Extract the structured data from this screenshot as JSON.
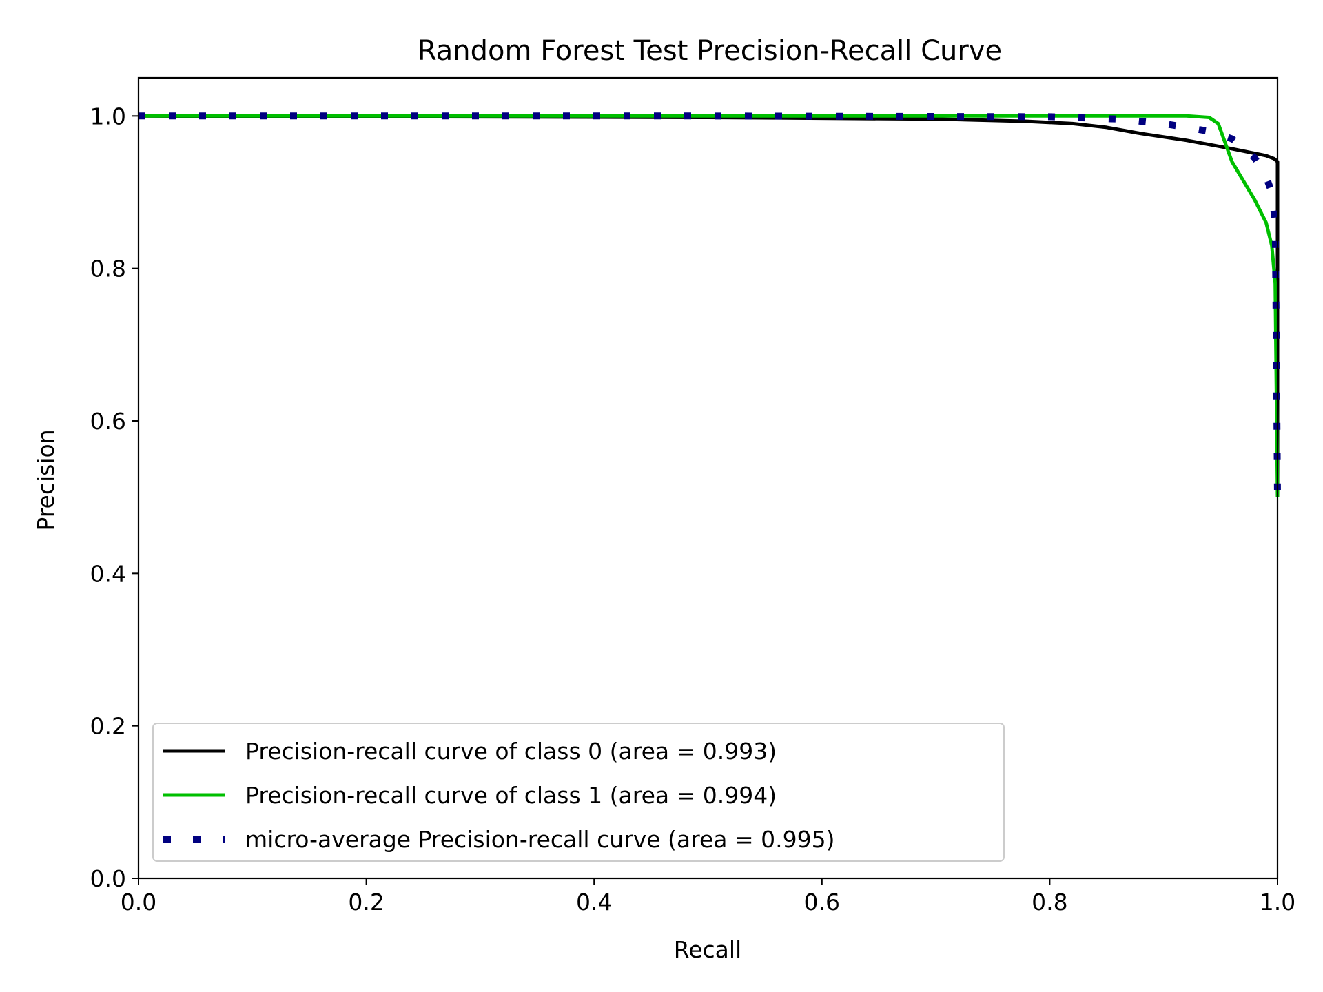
{
  "chart_data": {
    "type": "line",
    "title": "Random Forest Test Precision-Recall Curve",
    "xlabel": "Recall",
    "ylabel": "Precision",
    "xlim": [
      0.0,
      1.0
    ],
    "ylim": [
      0.0,
      1.05
    ],
    "xticks": [
      "0.0",
      "0.2",
      "0.4",
      "0.6",
      "0.8",
      "1.0"
    ],
    "yticks": [
      "0.0",
      "0.2",
      "0.4",
      "0.6",
      "0.8",
      "1.0"
    ],
    "grid": false,
    "legend_position": "lower-left",
    "series": [
      {
        "name": "Precision-recall curve of class 0 (area = 0.993)",
        "color": "#000000",
        "style": "solid",
        "x": [
          0.0,
          0.5,
          0.7,
          0.78,
          0.82,
          0.85,
          0.88,
          0.92,
          0.96,
          0.99,
          0.997,
          1.0,
          1.0
        ],
        "y": [
          1.0,
          0.998,
          0.996,
          0.993,
          0.99,
          0.985,
          0.977,
          0.968,
          0.957,
          0.948,
          0.944,
          0.94,
          0.5
        ]
      },
      {
        "name": "Precision-recall curve of class 1 (area = 0.994)",
        "color": "#00bf00",
        "style": "solid",
        "x": [
          0.0,
          0.5,
          0.85,
          0.92,
          0.94,
          0.948,
          0.96,
          0.98,
          0.99,
          0.995,
          0.998,
          1.0
        ],
        "y": [
          1.0,
          1.0,
          1.0,
          1.0,
          0.998,
          0.99,
          0.94,
          0.89,
          0.86,
          0.83,
          0.78,
          0.5
        ]
      },
      {
        "name": "micro-average Precision-recall curve (area = 0.995)",
        "color": "#000080",
        "style": "dotted",
        "x": [
          0.0,
          0.5,
          0.8,
          0.86,
          0.9,
          0.94,
          0.96,
          0.98,
          0.99,
          0.995,
          0.998,
          0.999,
          1.0
        ],
        "y": [
          1.0,
          1.0,
          0.999,
          0.996,
          0.99,
          0.98,
          0.97,
          0.945,
          0.92,
          0.9,
          0.86,
          0.7,
          0.5
        ]
      }
    ]
  }
}
